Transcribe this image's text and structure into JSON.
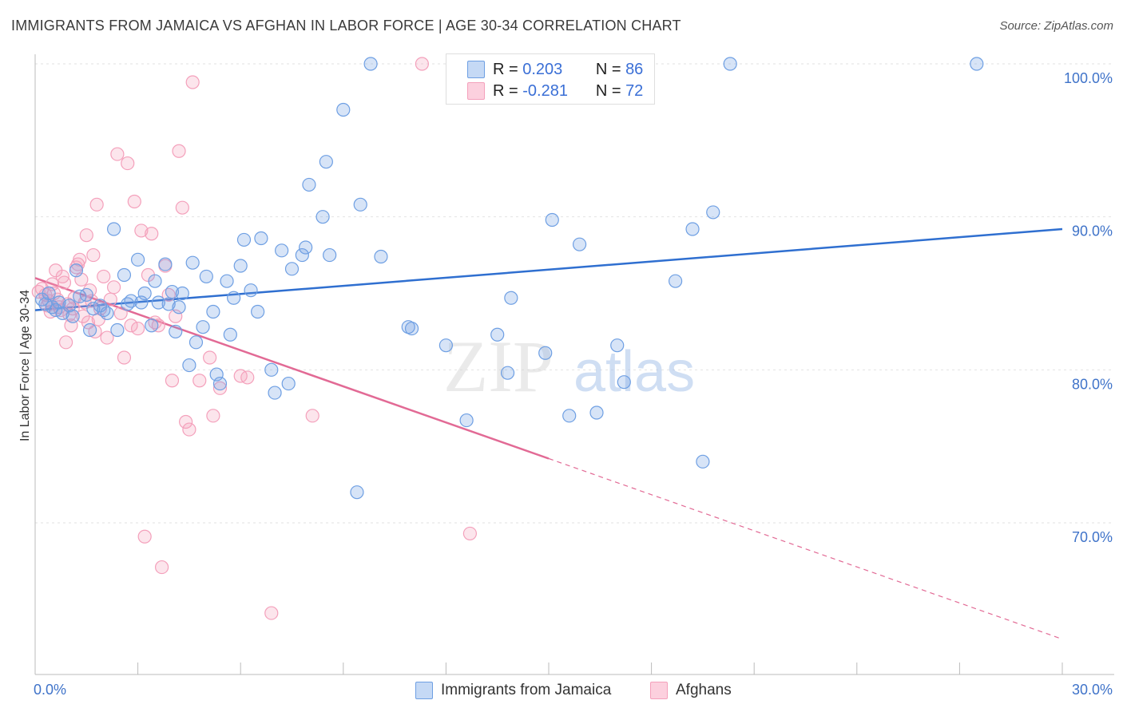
{
  "title": "IMMIGRANTS FROM JAMAICA VS AFGHAN IN LABOR FORCE | AGE 30-34 CORRELATION CHART",
  "source": "Source: ZipAtlas.com",
  "watermark": {
    "zip": "ZIP",
    "atlas": "atlas"
  },
  "stats": [
    {
      "r_label": "R =",
      "r_value": "0.203",
      "n_label": "N =",
      "n_value": "86"
    },
    {
      "r_label": "R =",
      "r_value": "-0.281",
      "n_label": "N =",
      "n_value": "72"
    }
  ],
  "chart_data": {
    "type": "scatter",
    "title": "IMMIGRANTS FROM JAMAICA VS AFGHAN IN LABOR FORCE | AGE 30-34 CORRELATION CHART",
    "xlabel": "",
    "ylabel": "In Labor Force | Age 30-34",
    "xlim": [
      0,
      30
    ],
    "ylim": [
      60,
      101.5
    ],
    "x_tick_labels": [
      "0.0%",
      "30.0%"
    ],
    "y_ticks": [
      70,
      80,
      90,
      100
    ],
    "y_tick_labels": [
      "70.0%",
      "80.0%",
      "90.0%",
      "100.0%"
    ],
    "grid": true,
    "legend_position": "bottom-center",
    "colors": {
      "jamaica": "#6e9fe3",
      "jamaica_line": "#2f6fd0",
      "afghan": "#f4a0bb",
      "afghan_line": "#e26a95",
      "tick": "#3f73c9"
    },
    "series": [
      {
        "name": "Immigrants from Jamaica",
        "r": 0.203,
        "n": 86,
        "trend": {
          "x": [
            0,
            30
          ],
          "y": [
            83.9,
            89.2
          ],
          "solid_to": 30
        },
        "points": [
          [
            0.2,
            84.6
          ],
          [
            0.3,
            84.3
          ],
          [
            0.4,
            85.0
          ],
          [
            0.5,
            84.1
          ],
          [
            0.6,
            83.9
          ],
          [
            0.7,
            84.4
          ],
          [
            0.8,
            83.7
          ],
          [
            1.0,
            84.2
          ],
          [
            1.1,
            83.5
          ],
          [
            1.2,
            86.5
          ],
          [
            1.3,
            84.8
          ],
          [
            1.5,
            84.9
          ],
          [
            1.6,
            82.6
          ],
          [
            1.7,
            84.0
          ],
          [
            1.9,
            84.2
          ],
          [
            2.0,
            83.9
          ],
          [
            2.1,
            83.7
          ],
          [
            2.3,
            89.2
          ],
          [
            2.4,
            82.6
          ],
          [
            2.6,
            86.2
          ],
          [
            2.7,
            84.3
          ],
          [
            2.8,
            84.5
          ],
          [
            3.0,
            87.2
          ],
          [
            3.1,
            84.4
          ],
          [
            3.2,
            85.0
          ],
          [
            3.4,
            82.9
          ],
          [
            3.5,
            85.8
          ],
          [
            3.6,
            84.4
          ],
          [
            3.8,
            86.9
          ],
          [
            3.9,
            84.3
          ],
          [
            4.0,
            85.1
          ],
          [
            4.1,
            82.5
          ],
          [
            4.2,
            84.1
          ],
          [
            4.3,
            85.0
          ],
          [
            4.5,
            80.3
          ],
          [
            4.6,
            87.0
          ],
          [
            4.7,
            81.8
          ],
          [
            4.9,
            82.8
          ],
          [
            5.0,
            86.1
          ],
          [
            5.2,
            83.8
          ],
          [
            5.3,
            79.7
          ],
          [
            5.4,
            79.1
          ],
          [
            5.6,
            85.8
          ],
          [
            5.7,
            82.3
          ],
          [
            5.8,
            84.7
          ],
          [
            6.0,
            86.8
          ],
          [
            6.1,
            88.5
          ],
          [
            6.3,
            85.2
          ],
          [
            6.5,
            83.8
          ],
          [
            6.6,
            88.6
          ],
          [
            6.9,
            80.0
          ],
          [
            7.0,
            78.5
          ],
          [
            7.2,
            87.8
          ],
          [
            7.4,
            79.1
          ],
          [
            7.5,
            86.6
          ],
          [
            7.8,
            87.5
          ],
          [
            7.9,
            88.0
          ],
          [
            8.0,
            92.1
          ],
          [
            8.4,
            90.0
          ],
          [
            8.5,
            93.6
          ],
          [
            8.6,
            87.5
          ],
          [
            9.0,
            97.0
          ],
          [
            9.4,
            72.0
          ],
          [
            9.5,
            90.8
          ],
          [
            9.8,
            100.0
          ],
          [
            10.1,
            87.4
          ],
          [
            10.9,
            82.8
          ],
          [
            11.0,
            82.7
          ],
          [
            12.0,
            81.6
          ],
          [
            12.6,
            76.7
          ],
          [
            13.5,
            82.3
          ],
          [
            13.8,
            79.8
          ],
          [
            13.9,
            84.7
          ],
          [
            14.9,
            81.1
          ],
          [
            15.1,
            89.8
          ],
          [
            15.6,
            77.0
          ],
          [
            15.9,
            88.2
          ],
          [
            16.4,
            77.2
          ],
          [
            17.0,
            81.6
          ],
          [
            17.2,
            79.2
          ],
          [
            18.7,
            85.8
          ],
          [
            19.2,
            89.2
          ],
          [
            19.5,
            74.0
          ],
          [
            19.8,
            90.3
          ],
          [
            20.3,
            100.0
          ],
          [
            27.5,
            100.0
          ]
        ]
      },
      {
        "name": "Afghans",
        "r": -0.281,
        "n": 72,
        "trend": {
          "x": [
            0,
            30
          ],
          "y": [
            86.0,
            62.4
          ],
          "solid_to": 15
        },
        "points": [
          [
            0.2,
            85.3
          ],
          [
            0.3,
            84.9
          ],
          [
            0.4,
            84.5
          ],
          [
            0.5,
            85.6
          ],
          [
            0.6,
            86.5
          ],
          [
            0.7,
            84.1
          ],
          [
            0.8,
            86.1
          ],
          [
            0.9,
            81.8
          ],
          [
            1.0,
            83.6
          ],
          [
            1.1,
            84.0
          ],
          [
            1.2,
            86.7
          ],
          [
            1.3,
            87.2
          ],
          [
            1.4,
            83.5
          ],
          [
            1.5,
            88.8
          ],
          [
            1.6,
            85.2
          ],
          [
            1.7,
            87.5
          ],
          [
            1.8,
            90.8
          ],
          [
            1.9,
            84.0
          ],
          [
            2.0,
            86.1
          ],
          [
            2.1,
            82.1
          ],
          [
            2.2,
            84.6
          ],
          [
            2.3,
            85.4
          ],
          [
            2.4,
            94.1
          ],
          [
            2.5,
            83.7
          ],
          [
            2.6,
            80.8
          ],
          [
            2.7,
            93.5
          ],
          [
            2.8,
            82.9
          ],
          [
            2.9,
            91.0
          ],
          [
            3.0,
            82.7
          ],
          [
            3.1,
            89.1
          ],
          [
            3.2,
            69.1
          ],
          [
            3.3,
            86.2
          ],
          [
            3.4,
            88.9
          ],
          [
            3.5,
            83.1
          ],
          [
            3.6,
            82.9
          ],
          [
            3.7,
            67.1
          ],
          [
            3.8,
            86.8
          ],
          [
            3.9,
            84.9
          ],
          [
            4.0,
            79.3
          ],
          [
            4.1,
            83.5
          ],
          [
            4.2,
            94.3
          ],
          [
            4.3,
            90.6
          ],
          [
            4.4,
            76.6
          ],
          [
            4.5,
            76.1
          ],
          [
            4.6,
            98.8
          ],
          [
            4.8,
            79.3
          ],
          [
            5.1,
            80.8
          ],
          [
            5.2,
            77.0
          ],
          [
            5.4,
            78.8
          ],
          [
            6.0,
            79.6
          ],
          [
            6.2,
            79.5
          ],
          [
            6.9,
            64.1
          ],
          [
            8.1,
            77.0
          ],
          [
            11.3,
            100.0
          ],
          [
            12.7,
            69.3
          ],
          [
            0.1,
            85.1
          ],
          [
            0.35,
            84.2
          ],
          [
            0.45,
            83.8
          ],
          [
            0.55,
            85.0
          ],
          [
            0.65,
            84.6
          ],
          [
            0.75,
            83.9
          ],
          [
            0.85,
            85.7
          ],
          [
            0.95,
            84.3
          ],
          [
            1.05,
            82.9
          ],
          [
            1.15,
            84.7
          ],
          [
            1.25,
            86.9
          ],
          [
            1.35,
            85.9
          ],
          [
            1.45,
            84.4
          ],
          [
            1.55,
            83.1
          ],
          [
            1.65,
            84.5
          ],
          [
            1.75,
            82.5
          ],
          [
            1.85,
            83.3
          ]
        ]
      }
    ]
  },
  "legend": [
    {
      "label": "Immigrants from Jamaica"
    },
    {
      "label": "Afghans"
    }
  ]
}
